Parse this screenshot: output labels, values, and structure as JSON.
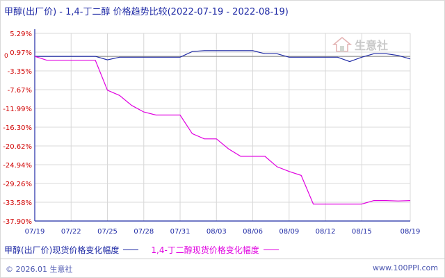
{
  "title": "甲醇(出厂价) - 1,4-丁二醇 价格趋势比较(2022-07-19 - 2022-08-19)",
  "watermark": "生意社",
  "footer": {
    "copyright": "© 2026.01 生意社",
    "site": "www.100PPI.com"
  },
  "colors": {
    "series1": "#1f2aa5",
    "series2": "#e000e0",
    "axis": "#1f2aa5",
    "grid": "#d8d8d8"
  },
  "chart_data": {
    "type": "line",
    "y_ticks": [
      "5.29%",
      "0.97%",
      "-3.35%",
      "-7.67%",
      "-11.99%",
      "-16.30%",
      "-20.62%",
      "-24.94%",
      "-29.26%",
      "-33.58%",
      "-37.90%"
    ],
    "y_tick_values": [
      5.29,
      0.97,
      -3.35,
      -7.67,
      -11.99,
      -16.3,
      -20.62,
      -24.94,
      -29.26,
      -33.58,
      -37.9
    ],
    "ylim": [
      -37.9,
      5.29
    ],
    "y_zero_label": "0",
    "x_ticks": [
      "07/19",
      "07/22",
      "07/25",
      "07/28",
      "07/31",
      "08/03",
      "08/06",
      "08/09",
      "08/12",
      "08/15",
      "08/19"
    ],
    "x_tick_days": [
      0,
      3,
      6,
      9,
      12,
      15,
      18,
      21,
      24,
      27,
      31
    ],
    "xlim_days": [
      0,
      31
    ],
    "grid": true,
    "legend_position": "bottom",
    "series": [
      {
        "name": "甲醇(出厂价)现货价格变化幅度",
        "color": "#1f2aa5",
        "points": [
          [
            0,
            0
          ],
          [
            1,
            0
          ],
          [
            2,
            0
          ],
          [
            3,
            0
          ],
          [
            4,
            0
          ],
          [
            5,
            0
          ],
          [
            6,
            -0.8
          ],
          [
            7,
            -0.2
          ],
          [
            8,
            -0.2
          ],
          [
            9,
            -0.2
          ],
          [
            10,
            -0.2
          ],
          [
            11,
            -0.2
          ],
          [
            12,
            -0.2
          ],
          [
            13,
            1.1
          ],
          [
            14,
            1.3
          ],
          [
            15,
            1.3
          ],
          [
            16,
            1.3
          ],
          [
            17,
            1.3
          ],
          [
            18,
            1.3
          ],
          [
            19,
            0.6
          ],
          [
            20,
            0.6
          ],
          [
            21,
            -0.2
          ],
          [
            22,
            -0.2
          ],
          [
            23,
            -0.2
          ],
          [
            24,
            -0.2
          ],
          [
            25,
            -0.2
          ],
          [
            26,
            -1.2
          ],
          [
            27,
            -0.2
          ],
          [
            28,
            0.6
          ],
          [
            29,
            0.6
          ],
          [
            30,
            0.2
          ],
          [
            31,
            -0.6
          ]
        ]
      },
      {
        "name": "1,4-丁二醇现货价格变化幅度",
        "color": "#e000e0",
        "points": [
          [
            0,
            0
          ],
          [
            1,
            -0.9
          ],
          [
            2,
            -0.9
          ],
          [
            3,
            -0.9
          ],
          [
            4,
            -0.9
          ],
          [
            5,
            -0.9
          ],
          [
            6,
            -7.8
          ],
          [
            7,
            -9.0
          ],
          [
            8,
            -11.3
          ],
          [
            9,
            -12.8
          ],
          [
            10,
            -13.5
          ],
          [
            11,
            -13.5
          ],
          [
            12,
            -13.5
          ],
          [
            13,
            -17.8
          ],
          [
            14,
            -19.0
          ],
          [
            15,
            -19.0
          ],
          [
            16,
            -21.3
          ],
          [
            17,
            -23.0
          ],
          [
            18,
            -23.0
          ],
          [
            19,
            -23.0
          ],
          [
            20,
            -25.4
          ],
          [
            21,
            -26.5
          ],
          [
            22,
            -27.4
          ],
          [
            23,
            -34.0
          ],
          [
            24,
            -34.0
          ],
          [
            25,
            -34.0
          ],
          [
            26,
            -34.0
          ],
          [
            27,
            -34.0
          ],
          [
            28,
            -33.2
          ],
          [
            29,
            -33.2
          ],
          [
            30,
            -33.3
          ],
          [
            31,
            -33.2
          ]
        ]
      }
    ]
  }
}
